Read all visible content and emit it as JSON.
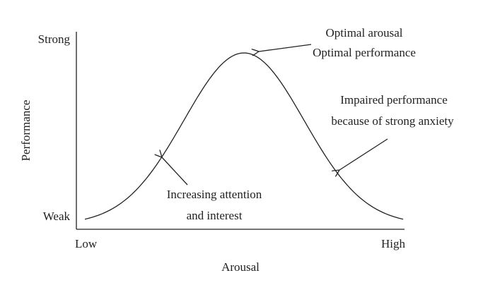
{
  "axes": {
    "y_label": "Performance",
    "y_top": "Strong",
    "y_bottom": "Weak",
    "x_label": "Arousal",
    "x_left": "Low",
    "x_right": "High"
  },
  "annotations": {
    "peak": [
      "Optimal arousal",
      "Optimal performance"
    ],
    "right": [
      "Impaired performance",
      "because of strong anxiety"
    ],
    "left": [
      "Increasing attention",
      "and interest"
    ]
  }
}
